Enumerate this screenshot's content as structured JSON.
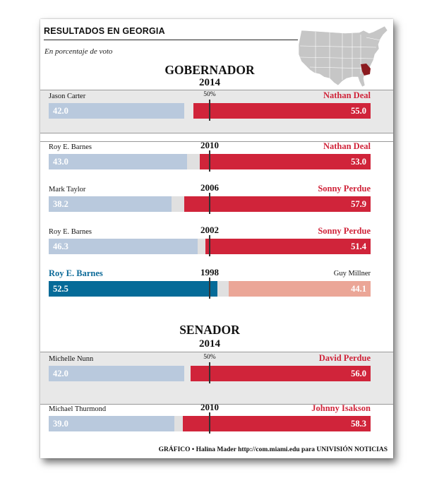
{
  "header": {
    "title": "RESULTADOS EN GEORGIA",
    "subtitle": "En porcentaje de voto"
  },
  "sections": {
    "governor": {
      "title": "GOBERNADOR",
      "year": "2014"
    },
    "senate": {
      "title": "SENADOR",
      "year": "2014"
    }
  },
  "marker_label": "50%",
  "credit": "GRÁFICO • Halina Mader  http://com.miami.edu para UNIVISIÓN NOTICIAS",
  "colors": {
    "republican_win": "#d0243a",
    "republican_lose": "#eba697",
    "democrat_win": "#056b98",
    "democrat_lose": "#b9c9dd",
    "georgia_highlight": "#8b1a1f",
    "map_states": "#c6c6c6"
  },
  "chart_data": {
    "type": "bar",
    "xlim": [
      0,
      100
    ],
    "marker": 50,
    "races": [
      {
        "id": "gov-2014",
        "office": "governor",
        "year": "",
        "left_name": "Jason Carter",
        "left_value": 42.0,
        "left_label": "42.0",
        "right_name": "Nathan Deal",
        "right_value": 55.0,
        "right_label": "55.0",
        "winner": "right",
        "show_50": true
      },
      {
        "id": "gov-2010",
        "office": "governor",
        "year": "2010",
        "left_name": "Roy E. Barnes",
        "left_value": 43.0,
        "left_label": "43.0",
        "right_name": "Nathan Deal",
        "right_value": 53.0,
        "right_label": "53.0",
        "winner": "right",
        "show_50": false
      },
      {
        "id": "gov-2006",
        "office": "governor",
        "year": "2006",
        "left_name": "Mark Taylor",
        "left_value": 38.2,
        "left_label": "38.2",
        "right_name": "Sonny Perdue",
        "right_value": 57.9,
        "right_label": "57.9",
        "winner": "right",
        "show_50": false
      },
      {
        "id": "gov-2002",
        "office": "governor",
        "year": "2002",
        "left_name": "Roy E. Barnes",
        "left_value": 46.3,
        "left_label": "46.3",
        "right_name": "Sonny Perdue",
        "right_value": 51.4,
        "right_label": "51.4",
        "winner": "right",
        "show_50": false
      },
      {
        "id": "gov-1998",
        "office": "governor",
        "year": "1998",
        "left_name": "Roy E. Barnes",
        "left_value": 52.5,
        "left_label": "52.5",
        "right_name": "Guy Millner",
        "right_value": 44.1,
        "right_label": "44.1",
        "winner": "left",
        "show_50": false
      },
      {
        "id": "sen-2014",
        "office": "senate",
        "year": "",
        "left_name": "Michelle Nunn",
        "left_value": 42.0,
        "left_label": "42.0",
        "right_name": "David Perdue",
        "right_value": 56.0,
        "right_label": "56.0",
        "winner": "right",
        "show_50": true
      },
      {
        "id": "sen-2010",
        "office": "senate",
        "year": "2010",
        "left_name": "Michael Thurmond",
        "left_value": 39.0,
        "left_label": "39.0",
        "right_name": "Johnny Isakson",
        "right_value": 58.3,
        "right_label": "58.3",
        "winner": "right",
        "show_50": false
      }
    ]
  }
}
